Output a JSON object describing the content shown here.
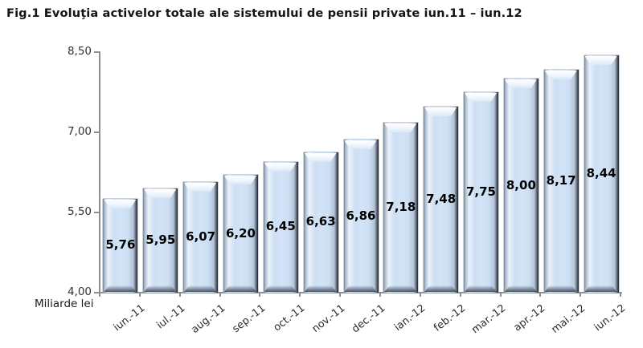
{
  "title": "Fig.1 Evoluţia activelor totale ale sistemului de pensii private iun.11 – iun.12",
  "colors": {
    "background": "#FFFFFF",
    "bar_fill": "#CEDFF3",
    "bar_highlight": "#FFFFFF",
    "bar_edge_dark": "#232A33",
    "axis": "#8A9097",
    "text": "#1A1A1A"
  },
  "chart_data": {
    "type": "bar",
    "title": "Fig.1 Evoluţia activelor totale ale sistemului de pensii private iun.11 – iun.12",
    "unit_label": "Miliarde lei",
    "categories": [
      "iun.-11",
      "iul.-11",
      "aug.-11",
      "sep.-11",
      "oct.-11",
      "nov.-11",
      "dec.-11",
      "ian.-12",
      "feb.-12",
      "mar.-12",
      "apr.-12",
      "mai.-12",
      "iun.-12"
    ],
    "values": [
      5.76,
      5.95,
      6.07,
      6.2,
      6.45,
      6.63,
      6.86,
      7.18,
      7.48,
      7.75,
      8.0,
      8.17,
      8.44
    ],
    "value_labels": [
      "5,76",
      "5,95",
      "6,07",
      "6,20",
      "6,45",
      "6,63",
      "6,86",
      "7,18",
      "7,48",
      "7,75",
      "8,00",
      "8,17",
      "8,44"
    ],
    "y_axis": {
      "min": 4.0,
      "max": 8.5,
      "ticks": [
        "8,50",
        "7,00",
        "5,50",
        "4,00"
      ],
      "tick_values": [
        8.5,
        7.0,
        5.5,
        4.0
      ]
    },
    "grid": false,
    "legend": "none",
    "bar_color": "#CEDFF3"
  }
}
